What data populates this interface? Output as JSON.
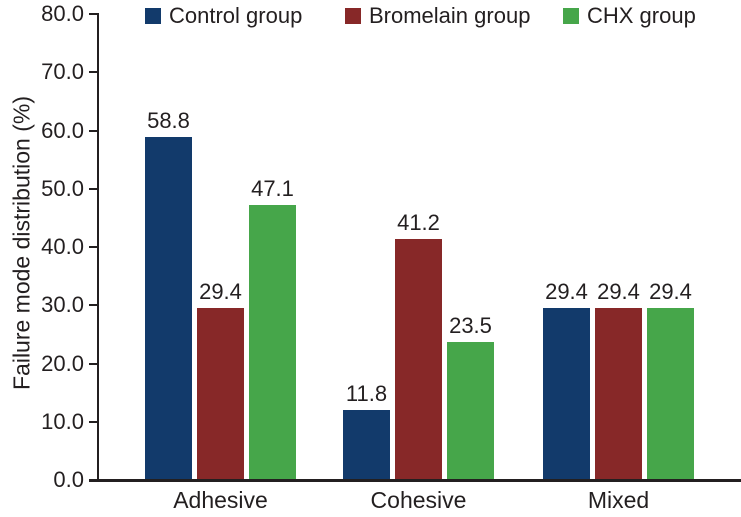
{
  "chart_data": {
    "type": "bar",
    "title": "",
    "xlabel": "",
    "ylabel": "Failure mode distribution (%)",
    "categories": [
      "Adhesive",
      "Cohesive",
      "Mixed"
    ],
    "series": [
      {
        "name": "Control group",
        "color": "#123a6b",
        "values": [
          58.8,
          11.8,
          29.4
        ]
      },
      {
        "name": "Bromelain group",
        "color": "#872828",
        "values": [
          29.4,
          41.2,
          29.4
        ]
      },
      {
        "name": "CHX group",
        "color": "#46a64a",
        "values": [
          47.1,
          23.5,
          29.4
        ]
      }
    ],
    "ylim": [
      0,
      80
    ],
    "ytick_step": 10,
    "ytick_labels": [
      "0.0",
      "10.0",
      "20.0",
      "30.0",
      "40.0",
      "50.0",
      "60.0",
      "70.0",
      "80.0"
    ],
    "value_labels_shown": true,
    "legend_position": "top",
    "grid": false
  },
  "colors": {
    "text": "#231f20",
    "axis": "#231f20",
    "background": "#ffffff"
  }
}
